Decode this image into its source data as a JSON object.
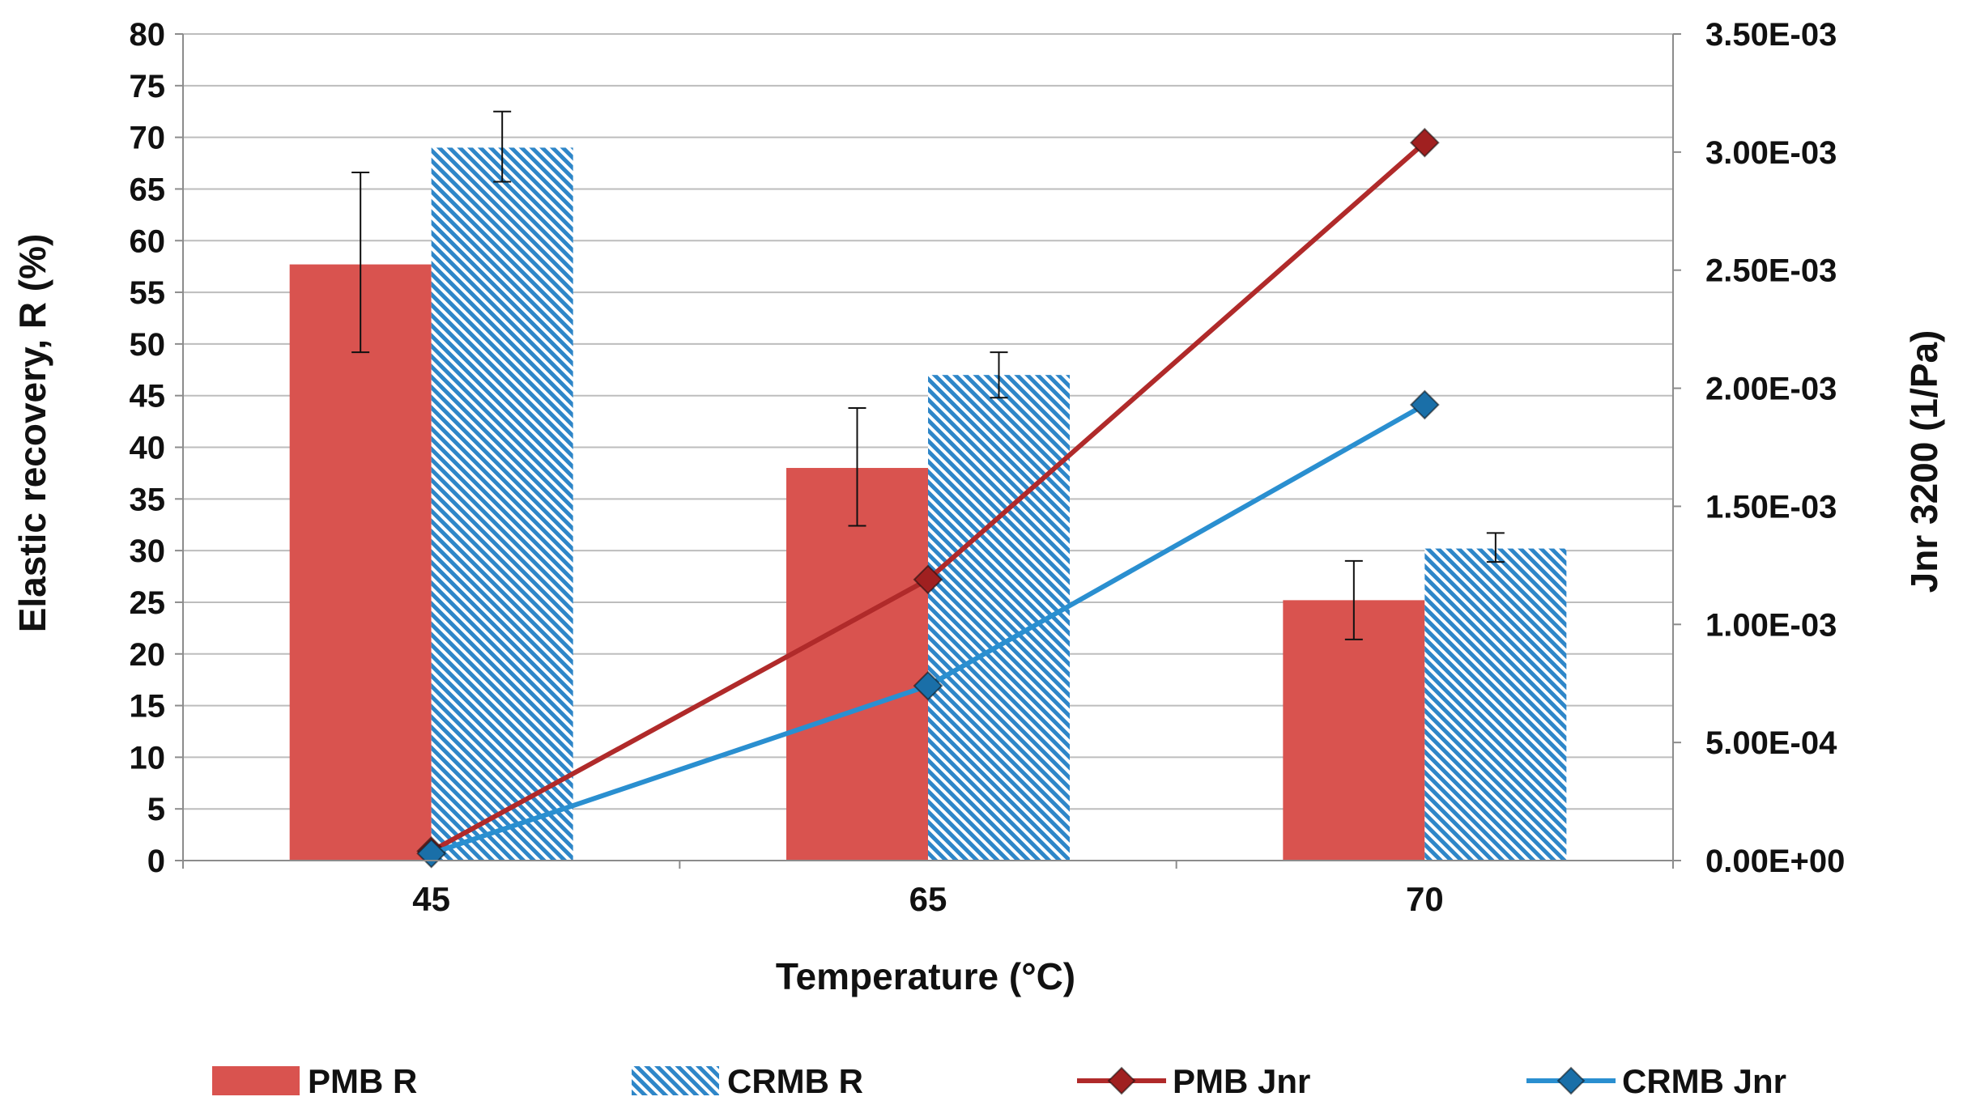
{
  "chart_data": {
    "type": "bar+line",
    "categories": [
      "45",
      "65",
      "70"
    ],
    "xlabel": "Temperature (°C)",
    "ylabel_left": "Elastic recovery, R (%)",
    "ylabel_right": "Jnr 3200 (1/Pa)",
    "ylim_left": [
      0,
      80
    ],
    "ytick_left_step": 5,
    "ylim_right": [
      0,
      0.0035
    ],
    "yticks_right": [
      "0.00E+00",
      "5.00E-04",
      "1.00E-03",
      "1.50E-03",
      "2.00E-03",
      "2.50E-03",
      "3.00E-03",
      "3.50E-03"
    ],
    "grid": true,
    "legend_position": "bottom",
    "bar_series": [
      {
        "name": "PMB R",
        "values": [
          57.7,
          38.0,
          25.2
        ],
        "error_low": [
          49.2,
          32.4,
          21.4
        ],
        "error_high": [
          66.6,
          43.8,
          29.0
        ],
        "color": "#d9534f",
        "pattern": "solid"
      },
      {
        "name": "CRMB R",
        "values": [
          69.0,
          47.0,
          30.2
        ],
        "error_low": [
          65.7,
          44.8,
          28.9
        ],
        "error_high": [
          72.5,
          49.2,
          31.7
        ],
        "color": "#2e86c8",
        "pattern": "hatch"
      }
    ],
    "line_series": [
      {
        "name": "PMB Jnr",
        "x": [
          "45",
          "65",
          "70"
        ],
        "values": [
          4e-05,
          0.00119,
          0.00304
        ],
        "color": "#b02a2a",
        "marker_color": "#a02020",
        "marker": "diamond"
      },
      {
        "name": "CRMB Jnr",
        "x": [
          "45",
          "65",
          "70"
        ],
        "values": [
          3e-05,
          0.00074,
          0.00193
        ],
        "color": "#2a8fd0",
        "marker_color": "#1a6fa8",
        "marker": "diamond"
      }
    ]
  }
}
